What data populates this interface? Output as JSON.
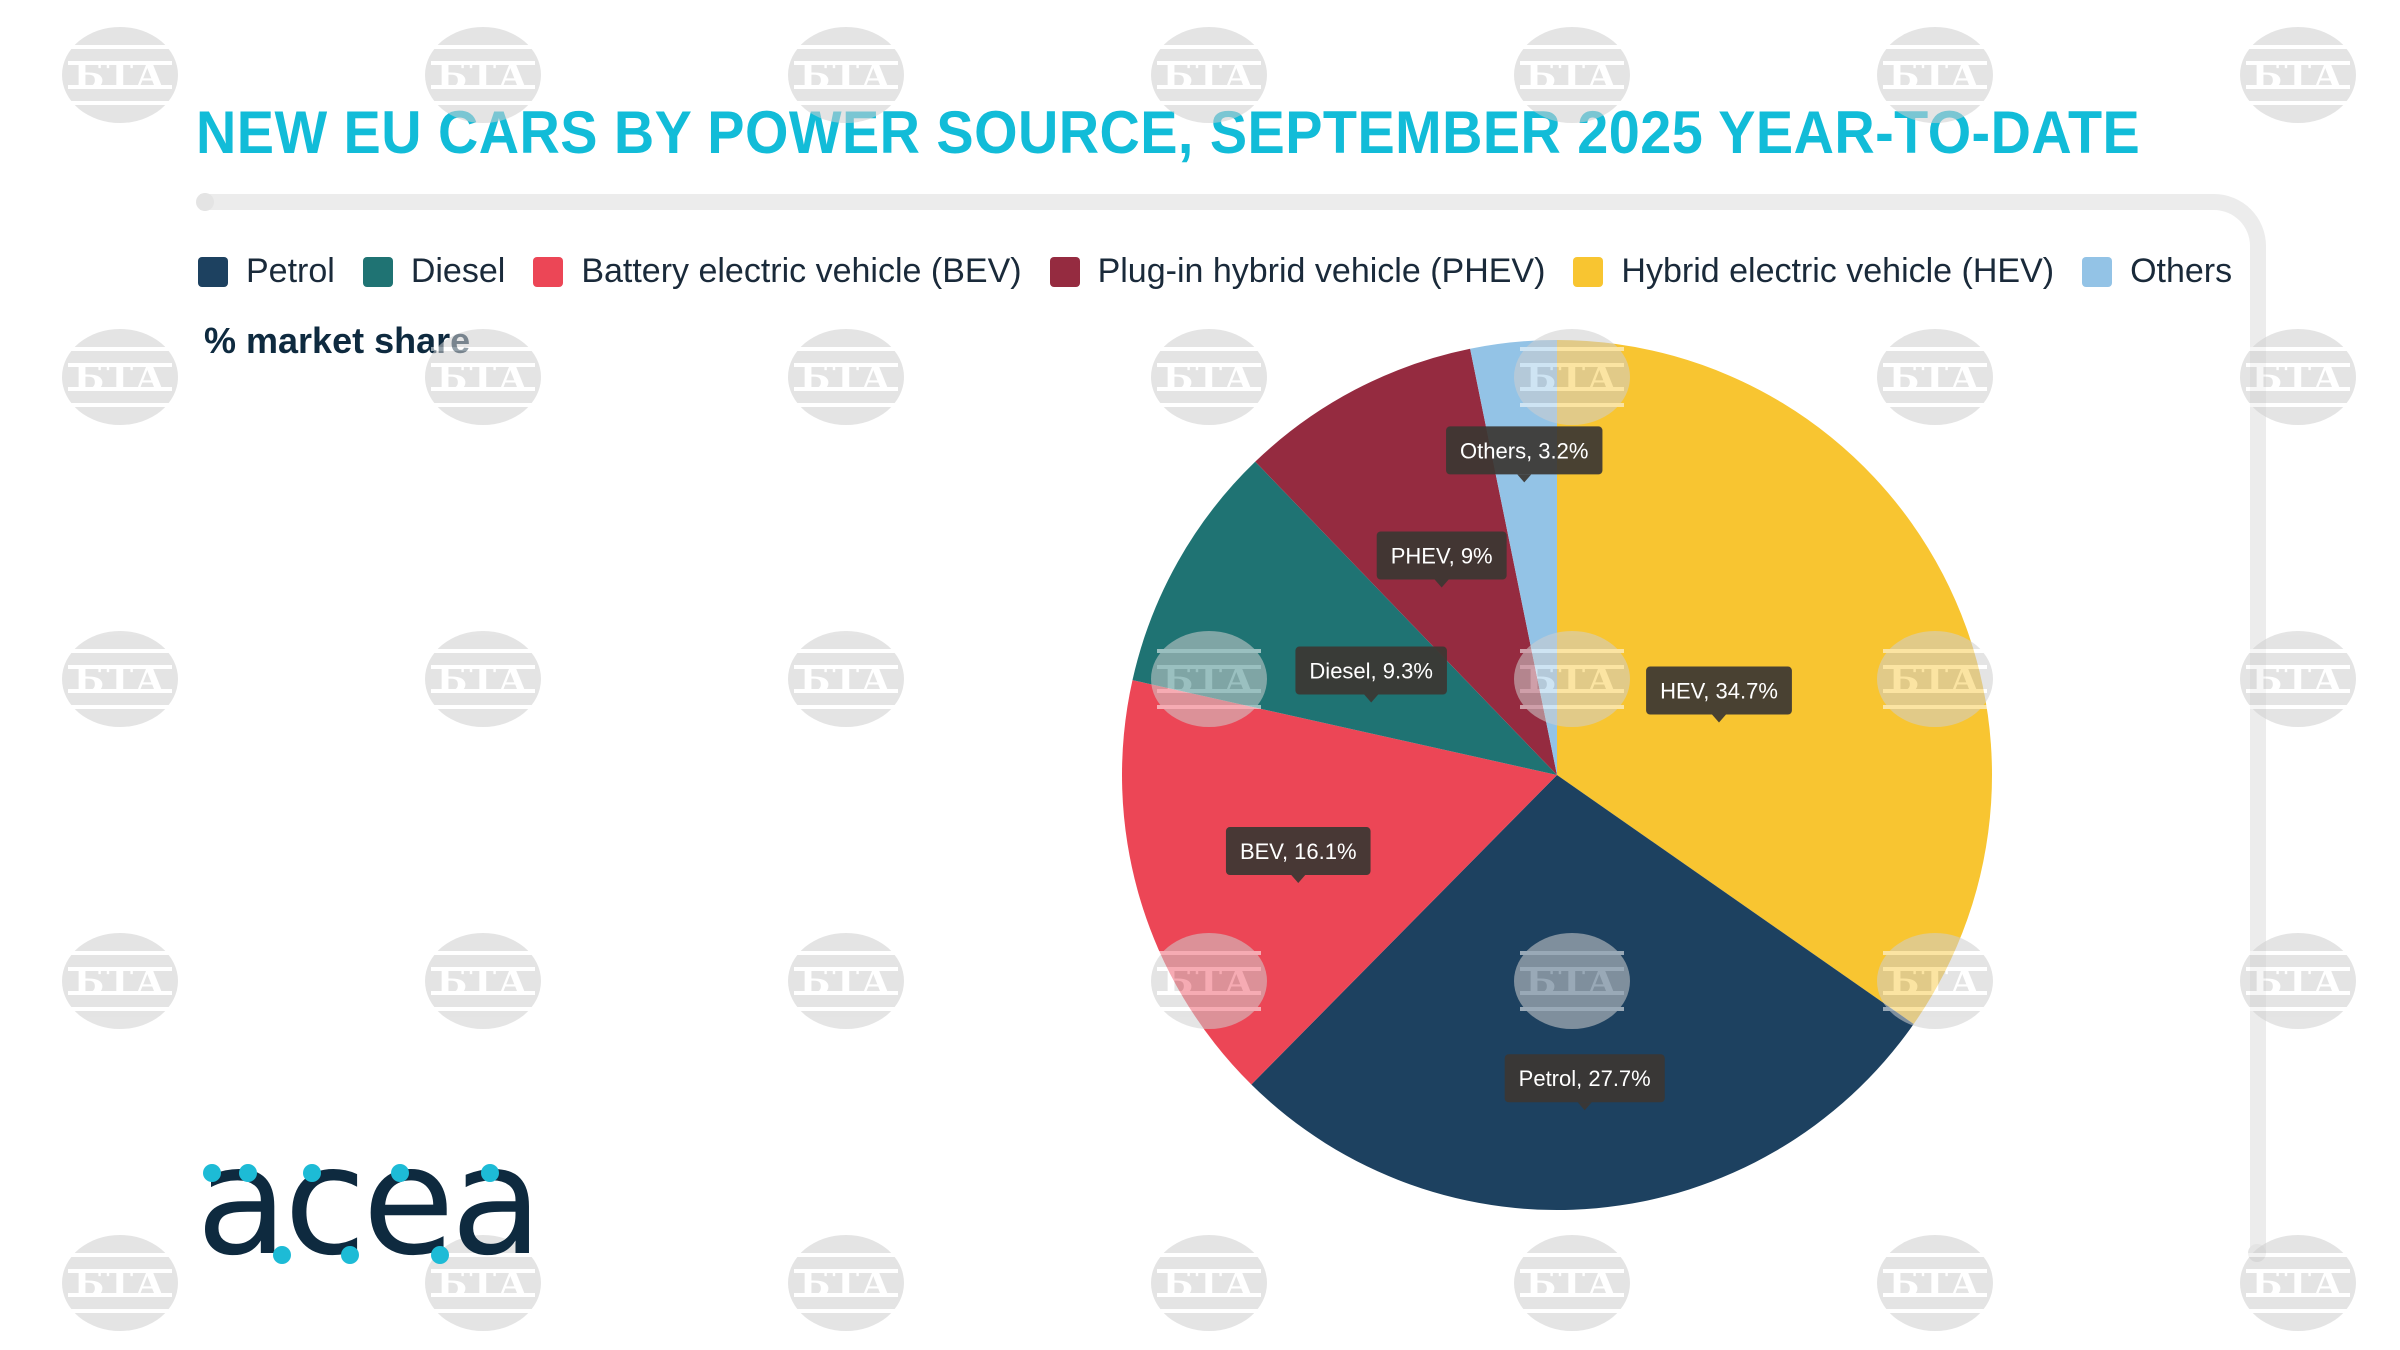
{
  "title": "NEW EU CARS BY POWER SOURCE, SEPTEMBER 2025 YEAR-TO-DATE",
  "unit_label": "% market share",
  "legend": [
    {
      "label": "Petrol",
      "color": "#1d4160"
    },
    {
      "label": "Diesel",
      "color": "#1f7373"
    },
    {
      "label": "Battery electric vehicle (BEV)",
      "color": "#ec4656"
    },
    {
      "label": "Plug-in hybrid vehicle (PHEV)",
      "color": "#952b40"
    },
    {
      "label": "Hybrid electric vehicle (HEV)",
      "color": "#f8c531"
    },
    {
      "label": "Others",
      "color": "#93c3e6"
    }
  ],
  "chart_data": {
    "type": "pie",
    "title": "NEW EU CARS BY POWER SOURCE, SEPTEMBER 2025 YEAR-TO-DATE",
    "unit": "% market share",
    "legend_position": "top",
    "start": "12 o'clock",
    "direction": "clockwise",
    "slices": [
      {
        "name": "HEV",
        "value": 34.7,
        "label": "HEV, 34.7%",
        "color": "#f8c531"
      },
      {
        "name": "Petrol",
        "value": 27.7,
        "label": "Petrol, 27.7%",
        "color": "#1d4160"
      },
      {
        "name": "BEV",
        "value": 16.1,
        "label": "BEV, 16.1%",
        "color": "#ec4656"
      },
      {
        "name": "Diesel",
        "value": 9.3,
        "label": "Diesel, 9.3%",
        "color": "#1f7373"
      },
      {
        "name": "PHEV",
        "value": 9,
        "label": "PHEV, 9%",
        "color": "#952b40"
      },
      {
        "name": "Others",
        "value": 3.2,
        "label": "Others, 3.2%",
        "color": "#93c3e6"
      }
    ]
  },
  "logo": {
    "text": "acea",
    "letter_color": "#0e2a3f",
    "dot_color": "#1dbbd6"
  },
  "watermark": {
    "text": "БТА",
    "color": "#cfcfcf"
  }
}
